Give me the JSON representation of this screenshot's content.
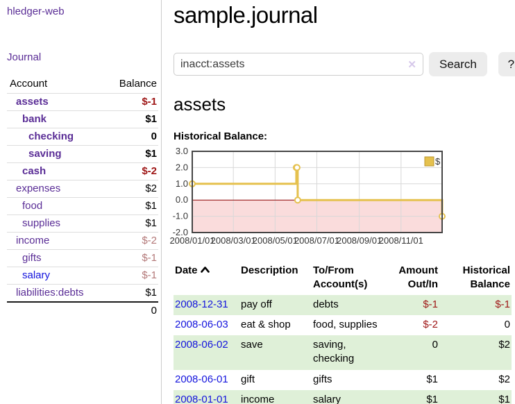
{
  "app": {
    "title": "hledger-web"
  },
  "colors": {
    "link_purple": "#5a2d96",
    "link_blue": "#1414dd",
    "negative_strong": "#9e1616",
    "negative_soft": "#b37878",
    "row_stripe_green": "#dff0d8",
    "series_gold": "#e5c14e",
    "zero_line_red": "#8b0000",
    "negative_area_pink": "#fadcdc"
  },
  "sidebar": {
    "journal_label": "Journal",
    "accounts": {
      "header_account": "Account",
      "header_balance": "Balance",
      "rows": [
        {
          "name": "assets",
          "depth": 1,
          "bold": true,
          "balance": "$-1",
          "balance_tone": "neg-strong"
        },
        {
          "name": "bank",
          "depth": 2,
          "bold": true,
          "balance": "$1",
          "balance_tone": "plain"
        },
        {
          "name": "checking",
          "depth": 3,
          "bold": true,
          "balance": "0",
          "balance_tone": "plain"
        },
        {
          "name": "saving",
          "depth": 3,
          "bold": true,
          "balance": "$1",
          "balance_tone": "plain"
        },
        {
          "name": "cash",
          "depth": 2,
          "bold": true,
          "balance": "$-2",
          "balance_tone": "neg-strong"
        },
        {
          "name": "expenses",
          "depth": 1,
          "bold": false,
          "balance": "$2",
          "balance_tone": "plain"
        },
        {
          "name": "food",
          "depth": 2,
          "bold": false,
          "balance": "$1",
          "balance_tone": "plain"
        },
        {
          "name": "supplies",
          "depth": 2,
          "bold": false,
          "balance": "$1",
          "balance_tone": "plain"
        },
        {
          "name": "income",
          "depth": 1,
          "bold": false,
          "balance": "$-2",
          "balance_tone": "neg-soft"
        },
        {
          "name": "gifts",
          "depth": 2,
          "bold": false,
          "balance": "$-1",
          "balance_tone": "neg-soft"
        },
        {
          "name": "salary",
          "depth": 2,
          "bold": false,
          "link_tone": "blue",
          "balance": "$-1",
          "balance_tone": "neg-soft"
        },
        {
          "name": "liabilities:debts",
          "depth": 1,
          "bold": false,
          "balance": "$1",
          "balance_tone": "plain"
        }
      ],
      "total": "0"
    }
  },
  "main": {
    "title": "sample.journal",
    "search": {
      "value": "inacct:assets",
      "clear_icon": "✕",
      "button_label": "Search",
      "help_label": "?"
    },
    "account_heading": "assets",
    "chart_title": "Historical Balance:"
  },
  "chart_data": {
    "type": "line",
    "step": true,
    "title": "Historical Balance",
    "x_domain": [
      "2008-01-01",
      "2008-12-31"
    ],
    "ylim": [
      -2,
      3
    ],
    "y_ticks": [
      "3.0",
      "2.0",
      "1.0",
      "0.0",
      "-1.0",
      "-2.0"
    ],
    "x_ticks": [
      {
        "date": "2008-01-01",
        "label": "2008/01/01"
      },
      {
        "date": "2008-03-01",
        "label": "2008/03/01"
      },
      {
        "date": "2008-05-01",
        "label": "2008/05/01"
      },
      {
        "date": "2008-07-01",
        "label": "2008/07/01"
      },
      {
        "date": "2008-09-01",
        "label": "2008/09/01"
      },
      {
        "date": "2008-11-01",
        "label": "2008/11/01"
      }
    ],
    "grid": true,
    "legend_position": "top-right",
    "series": [
      {
        "name": "$",
        "color": "#e5c14e",
        "points": [
          [
            "2008-01-01",
            1
          ],
          [
            "2008-06-01",
            2
          ],
          [
            "2008-06-02",
            2
          ],
          [
            "2008-06-03",
            0
          ],
          [
            "2008-12-31",
            -1
          ]
        ]
      }
    ]
  },
  "register": {
    "headers": {
      "date": "Date",
      "description": "Description",
      "accounts": "To/From Account(s)",
      "amount": "Amount Out/In",
      "balance": "Historical Balance"
    },
    "sort": {
      "column": "date",
      "direction": "ascending"
    },
    "rows": [
      {
        "date": "2008-12-31",
        "description": "pay off",
        "accounts": "debts",
        "amount": "$-1",
        "amount_tone": "neg",
        "balance": "$-1",
        "balance_tone": "neg",
        "striped": true
      },
      {
        "date": "2008-06-03",
        "description": "eat & shop",
        "accounts": "food, supplies",
        "amount": "$-2",
        "amount_tone": "neg",
        "balance": "0",
        "balance_tone": "plain",
        "striped": false
      },
      {
        "date": "2008-06-02",
        "description": "save",
        "accounts": "saving, checking",
        "amount": "0",
        "amount_tone": "plain",
        "balance": "$2",
        "balance_tone": "plain",
        "striped": true
      },
      {
        "date": "2008-06-01",
        "description": "gift",
        "accounts": "gifts",
        "amount": "$1",
        "amount_tone": "plain",
        "balance": "$2",
        "balance_tone": "plain",
        "striped": false
      },
      {
        "date": "2008-01-01",
        "description": "income",
        "accounts": "salary",
        "amount": "$1",
        "amount_tone": "plain",
        "balance": "$1",
        "balance_tone": "plain",
        "striped": true
      }
    ]
  }
}
